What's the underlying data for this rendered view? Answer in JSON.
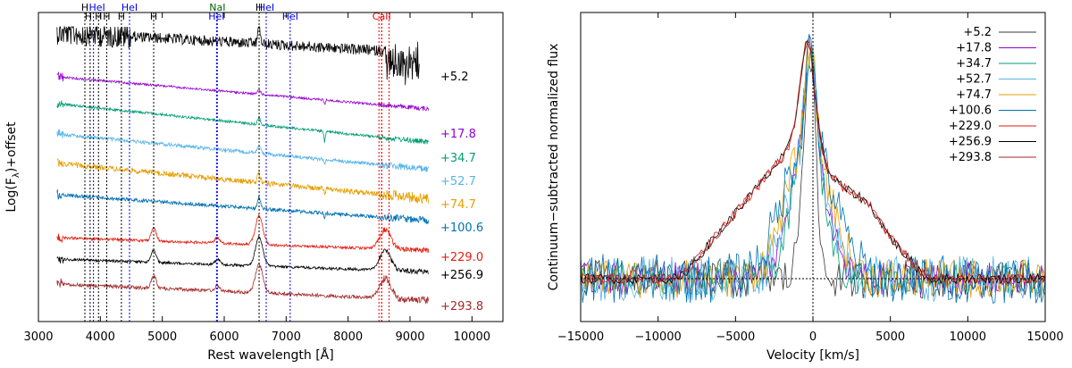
{
  "chart_data": [
    {
      "type": "line",
      "title": "",
      "xlabel": "Rest wavelength [Å]",
      "ylabel": "Log(F",
      "ylabel_sub": "λ",
      "ylabel_suffix": ")+offset",
      "xlim": [
        3000,
        10500
      ],
      "xticks": [
        3000,
        4000,
        5000,
        6000,
        7000,
        8000,
        9000,
        10000
      ],
      "xtick_labels": [
        "3000",
        "4000",
        "5000",
        "6000",
        "7000",
        "8000",
        "9000",
        "10000"
      ],
      "line_ids": [
        {
          "label": "H",
          "x": 3750,
          "color": "#000000"
        },
        {
          "label": "H",
          "x": 3835,
          "color": "#000000"
        },
        {
          "label": "HeI",
          "x": 3889,
          "color": "#0000ee"
        },
        {
          "label": "H",
          "x": 3970,
          "color": "#000000"
        },
        {
          "label": "H",
          "x": 4102,
          "color": "#000000"
        },
        {
          "label": "H",
          "x": 4340,
          "color": "#000000"
        },
        {
          "label": "HeI",
          "x": 4471,
          "color": "#0000ee"
        },
        {
          "label": "H",
          "x": 4861,
          "color": "#000000"
        },
        {
          "label": "NaI",
          "x": 5890,
          "color": "#006400"
        },
        {
          "label": "HeI",
          "x": 5876,
          "color": "#0000ee"
        },
        {
          "label": "H",
          "x": 6563,
          "color": "#000000"
        },
        {
          "label": "HeI",
          "x": 6678,
          "color": "#0000ee"
        },
        {
          "label": "HeI",
          "x": 7065,
          "color": "#0000ee"
        },
        {
          "label": "CaII",
          "x": 8542,
          "color": "#ee0000"
        }
      ],
      "caii_lines": [
        8498,
        8542,
        8662
      ],
      "series": [
        {
          "name": "+5.2",
          "color": "#000000",
          "x_range": [
            3300,
            9150
          ]
        },
        {
          "name": "+17.8",
          "color": "#9400d3",
          "x_range": [
            3300,
            9300
          ]
        },
        {
          "name": "+34.7",
          "color": "#009e73",
          "x_range": [
            3300,
            9300
          ]
        },
        {
          "name": "+52.7",
          "color": "#56b4e9",
          "x_range": [
            3300,
            9300
          ]
        },
        {
          "name": "+74.7",
          "color": "#e69f00",
          "x_range": [
            3300,
            9300
          ]
        },
        {
          "name": "+100.6",
          "color": "#0072b2",
          "x_range": [
            3300,
            9300
          ]
        },
        {
          "name": "+229.0",
          "color": "#e51e10",
          "x_range": [
            3300,
            9300
          ]
        },
        {
          "name": "+256.9",
          "color": "#000000",
          "x_range": [
            3300,
            9300
          ]
        },
        {
          "name": "+293.8",
          "color": "#a52a2a",
          "x_range": [
            3300,
            9300
          ]
        }
      ],
      "grid": false,
      "legend": "right, next to each spectrum"
    },
    {
      "type": "line",
      "title": "",
      "xlabel": "Velocity [km/s]",
      "ylabel": "Continuum−subtracted normalized flux",
      "xlim": [
        -15000,
        15000
      ],
      "xticks": [
        -15000,
        -10000,
        -5000,
        0,
        5000,
        10000,
        15000
      ],
      "xtick_labels": [
        "−15000",
        "−10000",
        "−5000",
        "0",
        "5000",
        "10000",
        "15000"
      ],
      "series": [
        {
          "name": "+5.2",
          "color": "#3a3a3a"
        },
        {
          "name": "+17.8",
          "color": "#9400d3"
        },
        {
          "name": "+34.7",
          "color": "#009e73"
        },
        {
          "name": "+52.7",
          "color": "#56b4e9"
        },
        {
          "name": "+74.7",
          "color": "#e69f00"
        },
        {
          "name": "+100.6",
          "color": "#0072b2"
        },
        {
          "name": "+229.0",
          "color": "#e51e10"
        },
        {
          "name": "+256.9",
          "color": "#000000"
        },
        {
          "name": "+293.8",
          "color": "#a52a2a"
        }
      ],
      "grid": false,
      "legend": "top-right"
    }
  ]
}
